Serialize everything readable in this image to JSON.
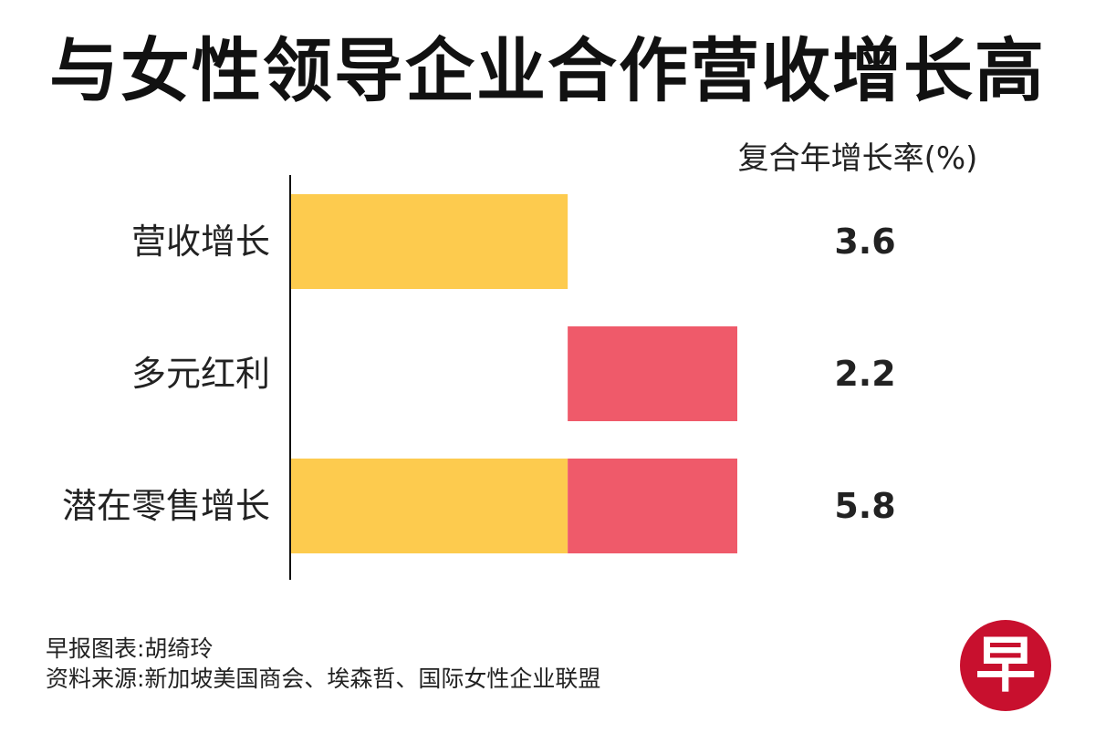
{
  "title": "与女性领导企业合作营收增长高",
  "unit_label": "复合年增长率(%)",
  "colors": {
    "revenue": "#fdcb4e",
    "diversity": "#ef5a6a",
    "axis": "#111111"
  },
  "chart_data": {
    "type": "bar",
    "orientation": "horizontal",
    "stacked": true,
    "categories": [
      "营收增长",
      "多元红利",
      "潜在零售增长"
    ],
    "series": [
      {
        "color": "revenue",
        "offsets": [
          0,
          3.6,
          0
        ],
        "values": [
          3.6,
          0,
          3.6
        ]
      },
      {
        "color": "diversity",
        "offsets": [
          0,
          3.6,
          3.6
        ],
        "values": [
          0,
          2.2,
          2.2
        ]
      }
    ],
    "value_labels": [
      "3.6",
      "2.2",
      "5.8"
    ],
    "xlim": [
      0,
      5.8
    ],
    "grid": false,
    "legend": "none"
  },
  "footer": {
    "credit": "早报图表:胡绮玲",
    "source": "资料来源:新加坡美国商会、埃森哲、国际女性企业联盟"
  },
  "logo": {
    "text": "早"
  }
}
